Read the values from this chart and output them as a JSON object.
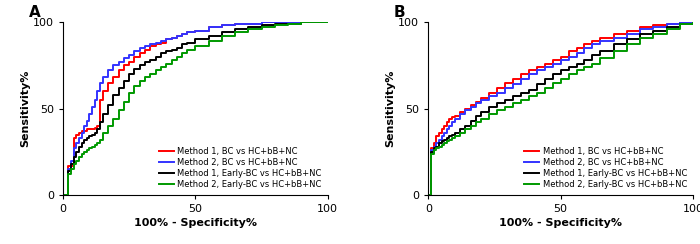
{
  "panel_A_label": "A",
  "panel_B_label": "B",
  "xlabel": "100% - Specificity%",
  "ylabel": "Sensitivity%",
  "xlim": [
    0,
    100
  ],
  "ylim": [
    0,
    100
  ],
  "xticks": [
    0,
    50,
    100
  ],
  "yticks": [
    0,
    50,
    100
  ],
  "legend_labels": [
    "Method 1, BC vs HC+bB+NC",
    "Method 2, BC vs HC+bB+NC",
    "Method 1, Early-BC vs HC+bB+NC",
    "Method 2, Early-BC vs HC+bB+NC"
  ],
  "colors": [
    "#FF0000",
    "#3333FF",
    "#000000",
    "#009900"
  ],
  "linewidth": 1.4,
  "background_color": "#ffffff",
  "panel_A": {
    "curves": {
      "red": {
        "x": [
          0,
          2,
          4,
          5,
          6,
          7,
          8,
          9,
          10,
          11,
          12,
          13,
          14,
          15,
          17,
          19,
          21,
          23,
          25,
          27,
          29,
          31,
          33,
          35,
          37,
          39,
          41,
          43,
          45,
          47,
          50,
          55,
          60,
          65,
          70,
          75,
          80,
          85,
          90,
          95,
          100
        ],
        "y": [
          0,
          17,
          33,
          35,
          36,
          37,
          37,
          38,
          38,
          38,
          39,
          40,
          55,
          60,
          65,
          68,
          72,
          75,
          77,
          80,
          82,
          84,
          86,
          87,
          88,
          90,
          91,
          92,
          93,
          94,
          95,
          97,
          98,
          99,
          99,
          100,
          100,
          100,
          100,
          100,
          100
        ]
      },
      "blue": {
        "x": [
          0,
          2,
          3,
          4,
          5,
          6,
          7,
          8,
          9,
          10,
          11,
          12,
          13,
          14,
          15,
          17,
          19,
          21,
          23,
          25,
          27,
          29,
          31,
          33,
          35,
          37,
          39,
          41,
          43,
          45,
          47,
          50,
          55,
          60,
          65,
          70,
          75,
          80,
          85,
          90,
          95,
          100
        ],
        "y": [
          0,
          15,
          20,
          27,
          30,
          33,
          36,
          40,
          43,
          47,
          51,
          55,
          60,
          65,
          68,
          72,
          75,
          77,
          79,
          81,
          83,
          85,
          86,
          87,
          88,
          89,
          90,
          91,
          92,
          93,
          94,
          95,
          97,
          98,
          99,
          99,
          100,
          100,
          100,
          100,
          100,
          100
        ]
      },
      "black": {
        "x": [
          0,
          2,
          3,
          4,
          5,
          6,
          7,
          8,
          9,
          10,
          11,
          12,
          13,
          14,
          15,
          17,
          19,
          21,
          23,
          25,
          27,
          29,
          31,
          33,
          35,
          37,
          39,
          41,
          43,
          45,
          47,
          50,
          55,
          60,
          65,
          70,
          75,
          80,
          85,
          90,
          95,
          100
        ],
        "y": [
          0,
          14,
          18,
          22,
          25,
          28,
          30,
          32,
          33,
          34,
          35,
          36,
          38,
          42,
          47,
          52,
          58,
          62,
          66,
          70,
          73,
          75,
          77,
          78,
          80,
          82,
          83,
          84,
          85,
          87,
          88,
          90,
          92,
          94,
          96,
          97,
          98,
          99,
          99,
          100,
          100,
          100
        ]
      },
      "green": {
        "x": [
          0,
          2,
          3,
          4,
          5,
          6,
          7,
          8,
          9,
          10,
          11,
          12,
          13,
          14,
          15,
          17,
          19,
          21,
          23,
          25,
          27,
          29,
          31,
          33,
          35,
          37,
          39,
          41,
          43,
          45,
          47,
          50,
          55,
          60,
          65,
          70,
          75,
          80,
          85,
          90,
          95,
          100
        ],
        "y": [
          0,
          12,
          15,
          18,
          20,
          22,
          24,
          25,
          26,
          27,
          28,
          29,
          30,
          32,
          36,
          40,
          44,
          49,
          54,
          59,
          63,
          66,
          68,
          70,
          72,
          74,
          76,
          78,
          80,
          82,
          84,
          86,
          89,
          92,
          94,
          96,
          97,
          98,
          99,
          100,
          100,
          100
        ]
      }
    }
  },
  "panel_B": {
    "curves": {
      "red": {
        "x": [
          0,
          1,
          2,
          3,
          4,
          5,
          6,
          7,
          8,
          9,
          10,
          12,
          14,
          16,
          18,
          20,
          23,
          26,
          29,
          32,
          35,
          38,
          41,
          44,
          47,
          50,
          53,
          56,
          59,
          62,
          65,
          70,
          75,
          80,
          85,
          90,
          95,
          100
        ],
        "y": [
          0,
          27,
          30,
          34,
          36,
          38,
          40,
          42,
          44,
          45,
          46,
          48,
          50,
          52,
          54,
          56,
          59,
          62,
          65,
          67,
          70,
          72,
          74,
          76,
          78,
          80,
          83,
          85,
          87,
          89,
          91,
          93,
          95,
          97,
          98,
          99,
          100,
          100
        ]
      },
      "blue": {
        "x": [
          0,
          1,
          2,
          3,
          4,
          5,
          6,
          7,
          8,
          9,
          10,
          12,
          14,
          16,
          18,
          20,
          23,
          26,
          29,
          32,
          35,
          38,
          41,
          44,
          47,
          50,
          53,
          56,
          59,
          62,
          65,
          70,
          75,
          80,
          85,
          90,
          95,
          100
        ],
        "y": [
          0,
          26,
          28,
          30,
          32,
          34,
          36,
          38,
          40,
          42,
          44,
          47,
          49,
          51,
          53,
          55,
          57,
          59,
          62,
          64,
          67,
          70,
          72,
          74,
          76,
          78,
          80,
          82,
          85,
          87,
          89,
          91,
          93,
          96,
          97,
          99,
          100,
          100
        ]
      },
      "black": {
        "x": [
          0,
          1,
          2,
          3,
          4,
          5,
          6,
          7,
          8,
          9,
          10,
          12,
          14,
          16,
          18,
          20,
          23,
          26,
          29,
          32,
          35,
          38,
          41,
          44,
          47,
          50,
          53,
          56,
          59,
          62,
          65,
          70,
          75,
          80,
          85,
          90,
          95,
          100
        ],
        "y": [
          0,
          25,
          27,
          28,
          30,
          31,
          32,
          33,
          34,
          35,
          36,
          38,
          40,
          43,
          46,
          48,
          51,
          53,
          55,
          57,
          59,
          61,
          64,
          67,
          70,
          72,
          74,
          76,
          78,
          81,
          83,
          87,
          90,
          93,
          95,
          97,
          99,
          100
        ]
      },
      "green": {
        "x": [
          0,
          1,
          2,
          3,
          4,
          5,
          6,
          7,
          8,
          9,
          10,
          12,
          14,
          16,
          18,
          20,
          23,
          26,
          29,
          32,
          35,
          38,
          41,
          44,
          47,
          50,
          53,
          56,
          59,
          62,
          65,
          70,
          75,
          80,
          85,
          90,
          95,
          100
        ],
        "y": [
          0,
          24,
          26,
          27,
          28,
          29,
          30,
          31,
          32,
          33,
          34,
          36,
          38,
          40,
          42,
          44,
          47,
          49,
          51,
          53,
          55,
          57,
          59,
          62,
          65,
          67,
          70,
          72,
          74,
          76,
          79,
          83,
          87,
          91,
          93,
          96,
          99,
          100
        ]
      }
    }
  }
}
